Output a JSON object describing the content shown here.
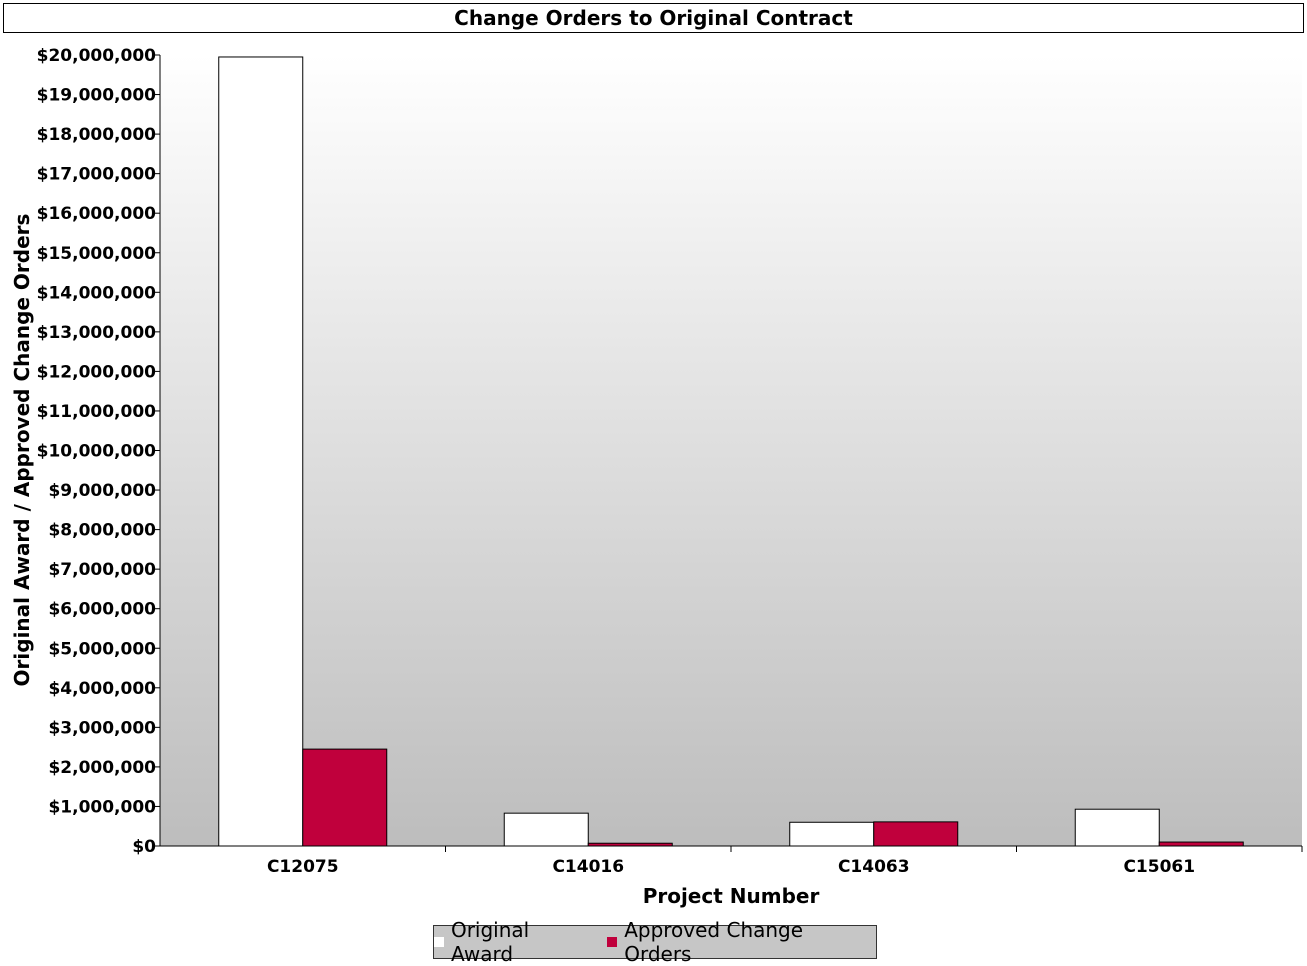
{
  "chart_data": {
    "type": "bar",
    "title": "Change Orders to Original Contract",
    "xlabel": "Project Number",
    "ylabel": "Original Award / Approved Change Orders",
    "categories": [
      "C12075",
      "C14016",
      "C14063",
      "C15061"
    ],
    "series": [
      {
        "name": "Original Award",
        "color": "#ffffff",
        "values": [
          19950000,
          830000,
          600000,
          930000
        ]
      },
      {
        "name": "Approved Change Orders",
        "color": "#c0003c",
        "values": [
          2450000,
          70000,
          610000,
          100000
        ]
      }
    ],
    "ylim": [
      0,
      20000000
    ],
    "yticks": [
      "$0",
      "$1,000,000",
      "$2,000,000",
      "$3,000,000",
      "$4,000,000",
      "$5,000,000",
      "$6,000,000",
      "$7,000,000",
      "$8,000,000",
      "$9,000,000",
      "$10,000,000",
      "$11,000,000",
      "$12,000,000",
      "$13,000,000",
      "$14,000,000",
      "$15,000,000",
      "$16,000,000",
      "$17,000,000",
      "$18,000,000",
      "$19,000,000",
      "$20,000,000"
    ],
    "legend_position": "bottom",
    "background": "gradient white to gray"
  }
}
